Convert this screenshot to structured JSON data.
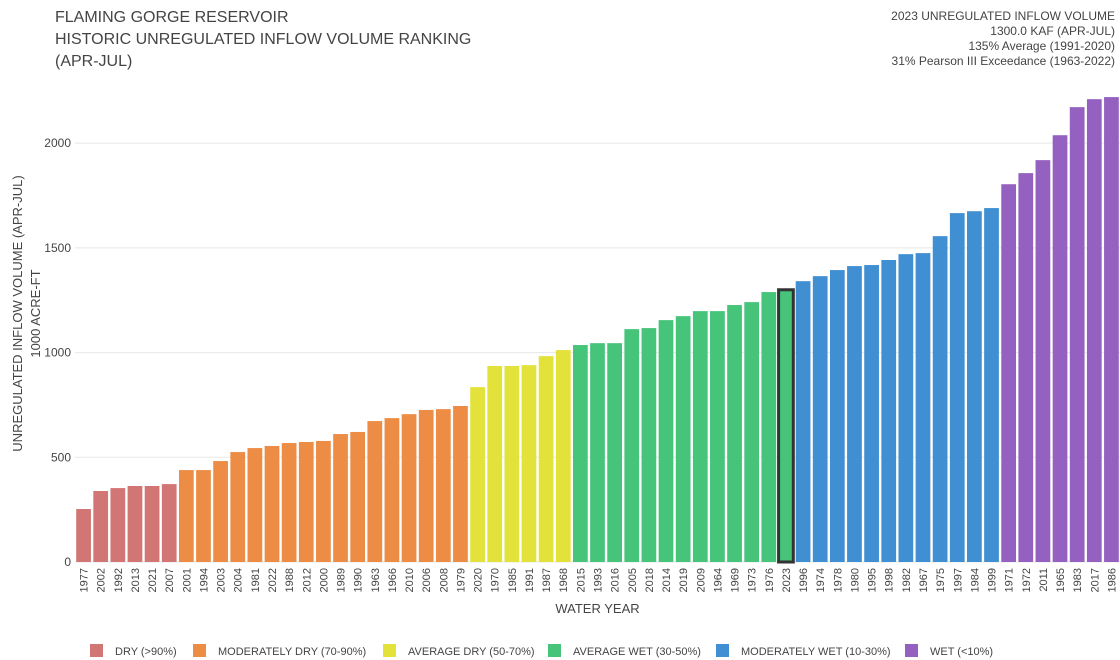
{
  "chart_data": {
    "type": "bar",
    "title_lines": [
      "FLAMING GORGE RESERVOIR",
      "HISTORIC UNREGULATED INFLOW VOLUME RANKING",
      "(APR-JUL)"
    ],
    "info_lines": [
      "2023 UNREGULATED INFLOW VOLUME",
      "1300.0 KAF (APR-JUL)",
      "135% Average (1991-2020)",
      "31% Pearson III Exceedance (1963-2022)"
    ],
    "y_label_lines": [
      "UNREGULATED INFLOW VOLUME (APR-JUL)",
      "1000 ACRE-FT"
    ],
    "x_label": "WATER YEAR",
    "highlight": "2023",
    "categories": [
      "1977",
      "2002",
      "1992",
      "2013",
      "2021",
      "2007",
      "2001",
      "1994",
      "2003",
      "2004",
      "1981",
      "2022",
      "1988",
      "2012",
      "2000",
      "1989",
      "1990",
      "1963",
      "1966",
      "2010",
      "2006",
      "2008",
      "1979",
      "2020",
      "1970",
      "1985",
      "1991",
      "1987",
      "1968",
      "2015",
      "1993",
      "2016",
      "2005",
      "2018",
      "2014",
      "2019",
      "2009",
      "1964",
      "1969",
      "1973",
      "1976",
      "2023",
      "1996",
      "1974",
      "1978",
      "1980",
      "1995",
      "1998",
      "1982",
      "1967",
      "1975",
      "1997",
      "1984",
      "1999",
      "1971",
      "1972",
      "2011",
      "1965",
      "1983",
      "2017",
      "1986"
    ],
    "series": [
      {
        "name": "DRY (>90%)",
        "color": "#d27575",
        "values": [
          253,
          339,
          353,
          363,
          363,
          372,
          null,
          null,
          null,
          null,
          null,
          null,
          null,
          null,
          null,
          null,
          null,
          null,
          null,
          null,
          null,
          null,
          null,
          null,
          null,
          null,
          null,
          null,
          null,
          null,
          null,
          null,
          null,
          null,
          null,
          null,
          null,
          null,
          null,
          null,
          null,
          null,
          null,
          null,
          null,
          null,
          null,
          null,
          null,
          null,
          null,
          null,
          null,
          null,
          null,
          null,
          null,
          null,
          null,
          null,
          null
        ]
      },
      {
        "name": "MODERATELY DRY (70-90%)",
        "color": "#ec8c45",
        "values": [
          null,
          null,
          null,
          null,
          null,
          null,
          439,
          439,
          482,
          525,
          544,
          554,
          568,
          573,
          578,
          611,
          621,
          673,
          687,
          706,
          726,
          730,
          745,
          null,
          null,
          null,
          null,
          null,
          null,
          null,
          null,
          null,
          null,
          null,
          null,
          null,
          null,
          null,
          null,
          null,
          null,
          null,
          null,
          null,
          null,
          null,
          null,
          null,
          null,
          null,
          null,
          null,
          null,
          null,
          null,
          null,
          null,
          null,
          null,
          null,
          null
        ]
      },
      {
        "name": "AVERAGE DRY (50-70%)",
        "color": "#e2e23a",
        "values": [
          null,
          null,
          null,
          null,
          null,
          null,
          null,
          null,
          null,
          null,
          null,
          null,
          null,
          null,
          null,
          null,
          null,
          null,
          null,
          null,
          null,
          null,
          null,
          835,
          936,
          936,
          940,
          983,
          1012,
          null,
          null,
          null,
          null,
          null,
          null,
          null,
          null,
          null,
          null,
          null,
          null,
          null,
          null,
          null,
          null,
          null,
          null,
          null,
          null,
          null,
          null,
          null,
          null,
          null,
          null,
          null,
          null,
          null,
          null,
          null,
          null
        ]
      },
      {
        "name": "AVERAGE WET (30-50%)",
        "color": "#45c47a",
        "values": [
          null,
          null,
          null,
          null,
          null,
          null,
          null,
          null,
          null,
          null,
          null,
          null,
          null,
          null,
          null,
          null,
          null,
          null,
          null,
          null,
          null,
          null,
          null,
          null,
          null,
          null,
          null,
          null,
          null,
          1036,
          1045,
          1045,
          1112,
          1117,
          1155,
          1174,
          1198,
          1198,
          1227,
          1241,
          1289,
          1300,
          null,
          null,
          null,
          null,
          null,
          null,
          null,
          null,
          null,
          null,
          null,
          null,
          null,
          null,
          null,
          null,
          null,
          null,
          null
        ]
      },
      {
        "name": "MODERATELY WET (10-30%)",
        "color": "#3f8fd2",
        "values": [
          null,
          null,
          null,
          null,
          null,
          null,
          null,
          null,
          null,
          null,
          null,
          null,
          null,
          null,
          null,
          null,
          null,
          null,
          null,
          null,
          null,
          null,
          null,
          null,
          null,
          null,
          null,
          null,
          null,
          null,
          null,
          null,
          null,
          null,
          null,
          null,
          null,
          null,
          null,
          null,
          null,
          null,
          1341,
          1365,
          1394,
          1413,
          1418,
          1442,
          1470,
          1475,
          1556,
          1666,
          1675,
          1690,
          null,
          null,
          null,
          null,
          null,
          null,
          null
        ]
      },
      {
        "name": "WET (<10%)",
        "color": "#9461c0",
        "values": [
          null,
          null,
          null,
          null,
          null,
          null,
          null,
          null,
          null,
          null,
          null,
          null,
          null,
          null,
          null,
          null,
          null,
          null,
          null,
          null,
          null,
          null,
          null,
          null,
          null,
          null,
          null,
          null,
          null,
          null,
          null,
          null,
          null,
          null,
          null,
          null,
          null,
          null,
          null,
          null,
          null,
          null,
          null,
          null,
          null,
          null,
          null,
          null,
          null,
          null,
          null,
          null,
          null,
          null,
          1804,
          1857,
          1919,
          2038,
          2172,
          2210,
          2220
        ]
      }
    ],
    "ylim": [
      0,
      2230
    ],
    "yticks": [
      0,
      500,
      1000,
      1500,
      2000
    ],
    "grid": true
  }
}
